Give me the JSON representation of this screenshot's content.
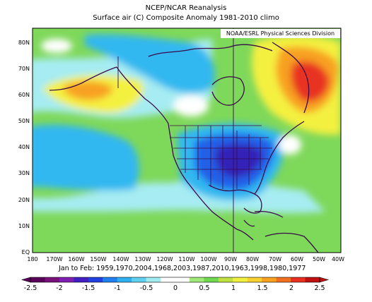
{
  "header": {
    "title": "NCEP/NCAR Reanalysis",
    "subtitle": "Surface air (C) Composite Anomaly 1981-2010 climo",
    "credit": "NOAA/ESRL Physical Sciences Division"
  },
  "composite_note": "Jan to Feb: 1959,1970,2004,1968,2003,1987,2010,1963,1998,1980,1977",
  "axes": {
    "lat_labels": [
      "80N",
      "70N",
      "60N",
      "50N",
      "40N",
      "30N",
      "20N",
      "10N",
      "EQ"
    ],
    "lon_labels": [
      "180",
      "170W",
      "160W",
      "150W",
      "140W",
      "130W",
      "120W",
      "110W",
      "100W",
      "90W",
      "80W",
      "70W",
      "60W",
      "50W",
      "40W"
    ]
  },
  "colorbar": {
    "tick_labels": [
      "-2.5",
      "-2",
      "-1.5",
      "-1",
      "-0.5",
      "0",
      "0.5",
      "1",
      "1.5",
      "2",
      "2.5"
    ],
    "colors": [
      "#5a005a",
      "#7a107a",
      "#8020b0",
      "#4020c0",
      "#2040e0",
      "#2080f0",
      "#30b0f0",
      "#60d0f0",
      "#a0ecf0",
      "#ffffff",
      "#ffffff",
      "#a0e878",
      "#70d850",
      "#c0e040",
      "#f0f040",
      "#f8d030",
      "#f8a020",
      "#f07020",
      "#e83020",
      "#c01010"
    ]
  },
  "palette": {
    "green": "#7ed85a",
    "light_blue": "#a6ecf2",
    "cyan": "#30b8f0",
    "blue": "#2060e8",
    "dark_blue": "#3020b8",
    "yellow": "#f4f040",
    "orange": "#f8a020",
    "red": "#e83020",
    "borders": "#3a0a4a"
  }
}
